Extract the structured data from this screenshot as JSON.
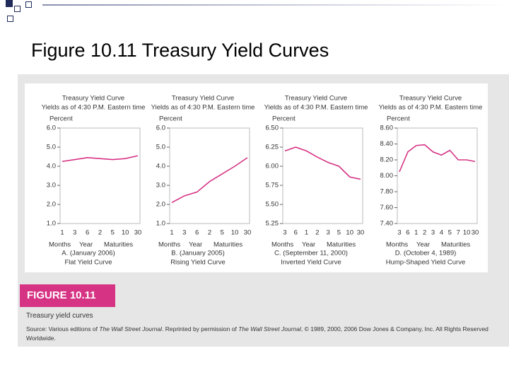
{
  "slide_title": "Figure 10.11 Treasury Yield Curves",
  "figure": {
    "label": "FIGURE 10.11",
    "caption": "Treasury yield curves",
    "source": [
      "Source: Various editions of ",
      "The Wall Street Journal",
      ". Reprinted by permission of ",
      "The Wall Street Journal",
      ", © 1989, 2000, 2006 Dow Jones & Company, Inc. All Rights Reserved Worldwide."
    ]
  },
  "chart_data": [
    {
      "type": "line",
      "title": "Treasury Yield Curve",
      "subtitle": "Yields as of 4:30 P.M. Eastern time",
      "y_label": "Percent",
      "x_labels": [
        "Months",
        "Year",
        "Maturities"
      ],
      "date": "A. (January 2006)",
      "curve_name": "Flat Yield Curve",
      "color": "#d63384",
      "categories": [
        "1",
        "3",
        "6",
        "2",
        "5",
        "10",
        "30"
      ],
      "values": [
        4.25,
        4.35,
        4.45,
        4.4,
        4.35,
        4.4,
        4.55
      ],
      "ylim": [
        1,
        6
      ],
      "yticks": [
        {
          "value": 1,
          "label": "1.0"
        },
        {
          "value": 2,
          "label": "2.0"
        },
        {
          "value": 3,
          "label": "3.0"
        },
        {
          "value": 4,
          "label": "4.0"
        },
        {
          "value": 5,
          "label": "5.0"
        },
        {
          "value": 6,
          "label": "6.0"
        }
      ]
    },
    {
      "type": "line",
      "title": "Treasury Yield Curve",
      "subtitle": "Yields as of 4:30 P.M. Eastern time",
      "y_label": "Percent",
      "x_labels": [
        "Months",
        "Year",
        "Maturities"
      ],
      "date": "B. (January 2005)",
      "curve_name": "Rising Yield Curve",
      "color": "#d63384",
      "categories": [
        "1",
        "3",
        "6",
        "2",
        "5",
        "10",
        "30"
      ],
      "values": [
        2.1,
        2.45,
        2.65,
        3.2,
        3.6,
        4.0,
        4.45
      ],
      "ylim": [
        1,
        6
      ],
      "yticks": [
        {
          "value": 1,
          "label": "1.0"
        },
        {
          "value": 2,
          "label": "2.0"
        },
        {
          "value": 3,
          "label": "3.0"
        },
        {
          "value": 4,
          "label": "4.0"
        },
        {
          "value": 5,
          "label": "5.0"
        },
        {
          "value": 6,
          "label": "6.0"
        }
      ]
    },
    {
      "type": "line",
      "title": "Treasury Yield Curve",
      "subtitle": "Yields as of 4:30 P.M. Eastern time",
      "y_label": "Percent",
      "x_labels": [
        "Months",
        "Year",
        "Maturities"
      ],
      "date": "C. (September 11, 2000)",
      "curve_name": "Inverted Yield Curve",
      "color": "#d63384",
      "categories": [
        "3",
        "6",
        "1",
        "2",
        "3",
        "5",
        "10",
        "30"
      ],
      "values": [
        6.2,
        6.25,
        6.2,
        6.12,
        6.05,
        6.0,
        5.86,
        5.83
      ],
      "ylim": [
        5.25,
        6.5
      ],
      "yticks": [
        5.25,
        {
          "value": 5.5,
          "label": "5.50"
        },
        5.75,
        {
          "value": 6,
          "label": "6.00"
        },
        6.25,
        {
          "value": 6.5,
          "label": "6.50"
        }
      ]
    },
    {
      "type": "line",
      "title": "Treasury Yield Curve",
      "subtitle": "Yields as of 4:30 P.M. Eastern time",
      "y_label": "Percent",
      "x_labels": [
        "Months",
        "Year",
        "Maturities"
      ],
      "date": "D. (October 4, 1989)",
      "curve_name": "Hump-Shaped Yield Curve",
      "color": "#d63384",
      "categories": [
        "3",
        "6",
        "1",
        "2",
        "3",
        "4",
        "5",
        "7",
        "10",
        "30"
      ],
      "values": [
        8.05,
        8.3,
        8.38,
        8.39,
        8.3,
        8.26,
        8.32,
        8.2,
        8.2,
        8.18
      ],
      "ylim": [
        7.4,
        8.6
      ],
      "yticks": [
        {
          "value": 7.4,
          "label": "7.40"
        },
        {
          "value": 7.6,
          "label": "7.60"
        },
        {
          "value": 7.8,
          "label": "7.80"
        },
        {
          "value": 8,
          "label": "8.00"
        },
        {
          "value": 8.2,
          "label": "8.20"
        },
        {
          "value": 8.4,
          "label": "8.40"
        },
        {
          "value": 8.6,
          "label": "8.60"
        }
      ]
    }
  ]
}
